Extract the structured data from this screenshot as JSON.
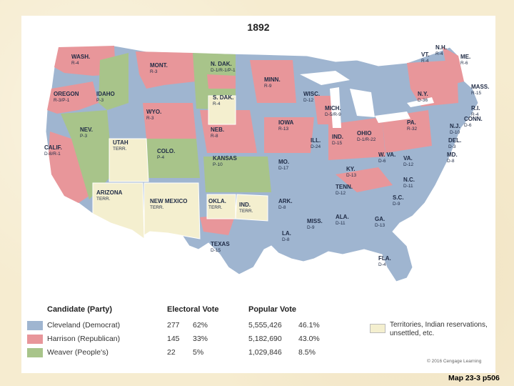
{
  "title": "1892",
  "caption": "Map 23-3 p506",
  "credit": "© 2016 Cengage Learning",
  "colors": {
    "democrat": "#9fb5d0",
    "republican": "#e8969a",
    "peoples": "#a8c48a",
    "territory": "#f4efcf",
    "water": "#ffffff"
  },
  "legend": {
    "headers": {
      "candidate": "Candidate (Party)",
      "electoral": "Electoral Vote",
      "popular": "Popular Vote"
    },
    "rows": [
      {
        "name": "Cleveland (Democrat)",
        "ev": "277",
        "ev_pct": "62%",
        "pv": "5,555,426",
        "pv_pct": "46.1%"
      },
      {
        "name": "Harrison (Republican)",
        "ev": "145",
        "ev_pct": "33%",
        "pv": "5,182,690",
        "pv_pct": "43.0%"
      },
      {
        "name": "Weaver (People's)",
        "ev": "22",
        "ev_pct": "5%",
        "pv": "1,029,846",
        "pv_pct": "8.5%"
      }
    ],
    "territory_label": "Territories, Indian reservations, unsettled, etc."
  },
  "states": [
    {
      "name": "WASH.",
      "votes": "R-4"
    },
    {
      "name": "OREGON",
      "votes": "R-3/P-1"
    },
    {
      "name": "CALIF.",
      "votes": "D-8/R-1"
    },
    {
      "name": "NEV.",
      "votes": "P-3"
    },
    {
      "name": "IDAHO",
      "votes": "P-3"
    },
    {
      "name": "MONT.",
      "votes": "R-3"
    },
    {
      "name": "WYO.",
      "votes": "R-3"
    },
    {
      "name": "UTAH",
      "votes": "TERR."
    },
    {
      "name": "COLO.",
      "votes": "P-4"
    },
    {
      "name": "ARIZONA",
      "votes": "TERR."
    },
    {
      "name": "NEW MEXICO",
      "votes": "TERR."
    },
    {
      "name": "N. DAK.",
      "votes": "D-1/R-1/P-1"
    },
    {
      "name": "S. DAK.",
      "votes": "R-4"
    },
    {
      "name": "NEB.",
      "votes": "R-8"
    },
    {
      "name": "KANSAS",
      "votes": "P-10"
    },
    {
      "name": "OKLA.",
      "votes": "TERR."
    },
    {
      "name": "IND.",
      "votes": "TERR."
    },
    {
      "name": "TEXAS",
      "votes": "D-15"
    },
    {
      "name": "MINN.",
      "votes": "R-9"
    },
    {
      "name": "IOWA",
      "votes": "R-13"
    },
    {
      "name": "MO.",
      "votes": "D-17"
    },
    {
      "name": "ARK.",
      "votes": "D-8"
    },
    {
      "name": "LA.",
      "votes": "D-8"
    },
    {
      "name": "WISC.",
      "votes": "D-12"
    },
    {
      "name": "ILL.",
      "votes": "D-24"
    },
    {
      "name": "MICH.",
      "votes": "D-5/R-9"
    },
    {
      "name": "IND.",
      "votes": "D-15"
    },
    {
      "name": "OHIO",
      "votes": "D-1/R-22"
    },
    {
      "name": "KY.",
      "votes": "D-13"
    },
    {
      "name": "TENN.",
      "votes": "D-12"
    },
    {
      "name": "MISS.",
      "votes": "D-9"
    },
    {
      "name": "ALA.",
      "votes": "D-11"
    },
    {
      "name": "GA.",
      "votes": "D-13"
    },
    {
      "name": "FLA.",
      "votes": "D-4"
    },
    {
      "name": "S.C.",
      "votes": "D-9"
    },
    {
      "name": "N.C.",
      "votes": "D-11"
    },
    {
      "name": "VA.",
      "votes": "D-12"
    },
    {
      "name": "W. VA.",
      "votes": "D-6"
    },
    {
      "name": "PA.",
      "votes": "R-32"
    },
    {
      "name": "N.Y.",
      "votes": "D-36"
    },
    {
      "name": "VT.",
      "votes": "R-4"
    },
    {
      "name": "N.H.",
      "votes": "R-4"
    },
    {
      "name": "ME.",
      "votes": "R-6"
    },
    {
      "name": "MASS.",
      "votes": "R-15"
    },
    {
      "name": "R.I.",
      "votes": "R-4"
    },
    {
      "name": "CONN.",
      "votes": "D-6"
    },
    {
      "name": "N.J.",
      "votes": "D-10"
    },
    {
      "name": "DEL.",
      "votes": "D-3"
    },
    {
      "name": "MD.",
      "votes": "D-8"
    }
  ]
}
